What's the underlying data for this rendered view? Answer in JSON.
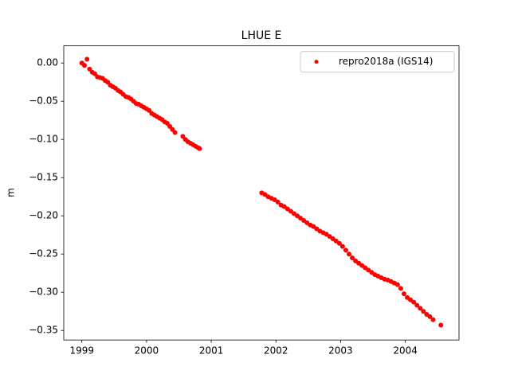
{
  "chart_data": {
    "type": "scatter",
    "title": "LHUE E",
    "y_label": "m",
    "legend": "upper right",
    "xlim": [
      1998.72,
      2004.83
    ],
    "xticks": [
      1999,
      2000,
      2001,
      2002,
      2003,
      2004
    ],
    "ylim": [
      0.0225,
      -0.3625
    ],
    "yticks": [
      {
        "value": 0,
        "label": "0.00"
      },
      {
        "value": -0.05,
        "label": "−0.05"
      },
      {
        "value": -0.1,
        "label": "−0.10"
      },
      {
        "value": -0.15,
        "label": "−0.15"
      },
      {
        "value": -0.2,
        "label": "−0.20"
      },
      {
        "value": -0.25,
        "label": "−0.25"
      },
      {
        "value": -0.3,
        "label": "−0.30"
      },
      {
        "value": -0.35,
        "label": "−0.35"
      }
    ],
    "x": [
      1999.0,
      1999.04,
      1999.08,
      1999.12,
      1999.16,
      1999.2,
      1999.24,
      1999.28,
      1999.32,
      1999.36,
      1999.4,
      1999.44,
      1999.48,
      1999.52,
      1999.56,
      1999.6,
      1999.64,
      1999.68,
      1999.72,
      1999.76,
      1999.8,
      1999.84,
      1999.88,
      1999.92,
      1999.96,
      2000.0,
      2000.04,
      2000.08,
      2000.12,
      2000.16,
      2000.2,
      2000.24,
      2000.28,
      2000.32,
      2000.36,
      2000.4,
      2000.44,
      2000.56,
      2000.6,
      2000.64,
      2000.68,
      2000.72,
      2000.76,
      2000.8,
      2000.82,
      2001.78,
      2001.83,
      2001.88,
      2001.93,
      2001.98,
      2002.03,
      2002.08,
      2002.13,
      2002.18,
      2002.23,
      2002.28,
      2002.33,
      2002.38,
      2002.43,
      2002.48,
      2002.53,
      2002.58,
      2002.63,
      2002.68,
      2002.73,
      2002.78,
      2002.83,
      2002.88,
      2002.93,
      2002.98,
      2003.03,
      2003.08,
      2003.13,
      2003.18,
      2003.23,
      2003.28,
      2003.33,
      2003.38,
      2003.43,
      2003.48,
      2003.53,
      2003.58,
      2003.63,
      2003.68,
      2003.73,
      2003.78,
      2003.83,
      2003.88,
      2003.93,
      2003.98,
      2004.03,
      2004.08,
      2004.13,
      2004.18,
      2004.23,
      2004.28,
      2004.33,
      2004.38,
      2004.43,
      2004.55
    ],
    "series": [
      {
        "name": "repro2018a (IGS14)",
        "color": "#ff0000",
        "values": [
          0.0,
          -0.003,
          0.005,
          -0.008,
          -0.012,
          -0.014,
          -0.018,
          -0.019,
          -0.02,
          -0.023,
          -0.025,
          -0.029,
          -0.031,
          -0.033,
          -0.036,
          -0.038,
          -0.041,
          -0.044,
          -0.045,
          -0.047,
          -0.05,
          -0.053,
          -0.054,
          -0.056,
          -0.058,
          -0.06,
          -0.062,
          -0.066,
          -0.068,
          -0.07,
          -0.072,
          -0.074,
          -0.077,
          -0.079,
          -0.083,
          -0.087,
          -0.091,
          -0.096,
          -0.1,
          -0.103,
          -0.105,
          -0.107,
          -0.109,
          -0.111,
          -0.112,
          -0.17,
          -0.172,
          -0.175,
          -0.177,
          -0.179,
          -0.182,
          -0.186,
          -0.188,
          -0.191,
          -0.194,
          -0.197,
          -0.2,
          -0.203,
          -0.206,
          -0.209,
          -0.212,
          -0.214,
          -0.217,
          -0.22,
          -0.222,
          -0.224,
          -0.227,
          -0.23,
          -0.233,
          -0.236,
          -0.24,
          -0.245,
          -0.25,
          -0.255,
          -0.259,
          -0.262,
          -0.265,
          -0.268,
          -0.271,
          -0.274,
          -0.277,
          -0.279,
          -0.281,
          -0.283,
          -0.284,
          -0.286,
          -0.288,
          -0.29,
          -0.295,
          -0.302,
          -0.307,
          -0.31,
          -0.313,
          -0.317,
          -0.321,
          -0.325,
          -0.329,
          -0.332,
          -0.336,
          -0.343
        ]
      }
    ]
  }
}
